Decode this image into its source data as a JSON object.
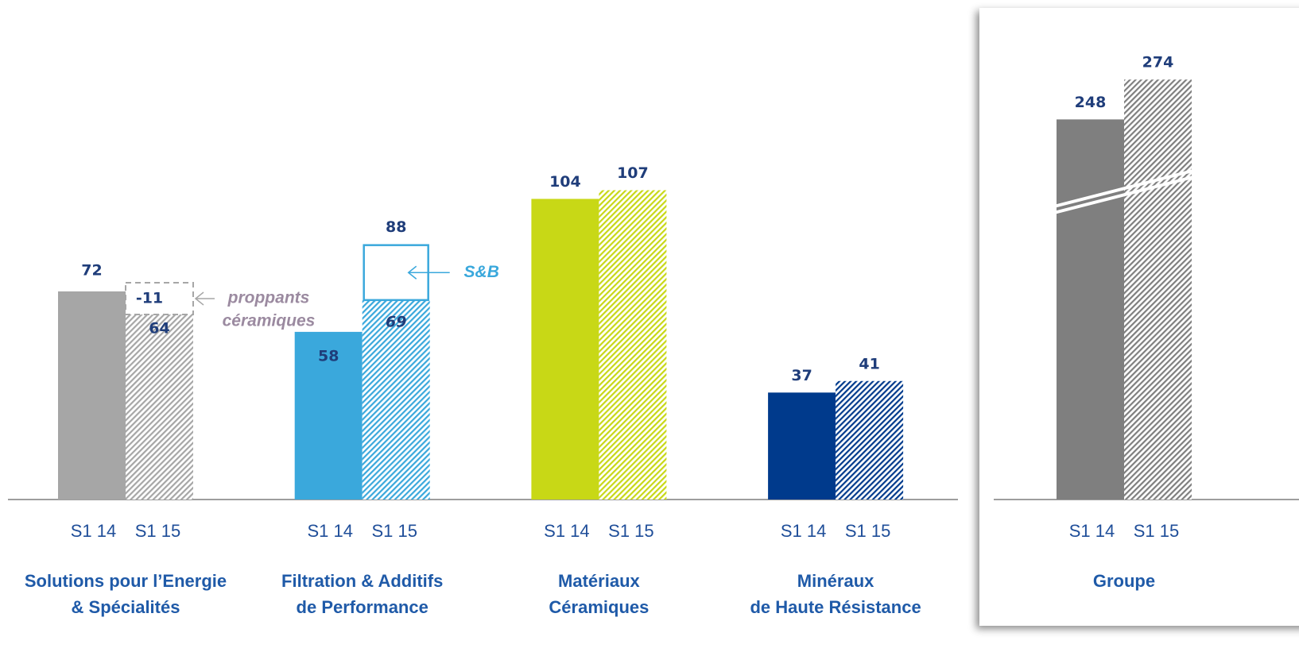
{
  "chart_data": {
    "type": "bar",
    "categories": [
      "S1 14",
      "S1 15"
    ],
    "groups": [
      {
        "name": [
          "Solutions pour l’Energie",
          "& Spécialités"
        ],
        "values": [
          72,
          64
        ],
        "color": "#a6a6a6",
        "annotation": {
          "value": -11,
          "text": [
            "proppants",
            "céramiques"
          ],
          "color": "#9b8aa0"
        }
      },
      {
        "name": [
          "Filtration & Additifs",
          "de Performance"
        ],
        "values": [
          58,
          69
        ],
        "color": "#3aa8dc",
        "annotation": {
          "value": 88,
          "text": [
            "S&B"
          ],
          "color": "#3aa8dc"
        }
      },
      {
        "name": [
          "Matériaux",
          "Céramiques"
        ],
        "values": [
          104,
          107
        ],
        "color": "#c8d816"
      },
      {
        "name": [
          "Minéraux",
          "de Haute Résistance"
        ],
        "values": [
          37,
          41
        ],
        "color": "#003a8c"
      }
    ],
    "total": {
      "name": [
        "Groupe"
      ],
      "values": [
        248,
        274
      ],
      "color": "#7f7f7f"
    }
  }
}
